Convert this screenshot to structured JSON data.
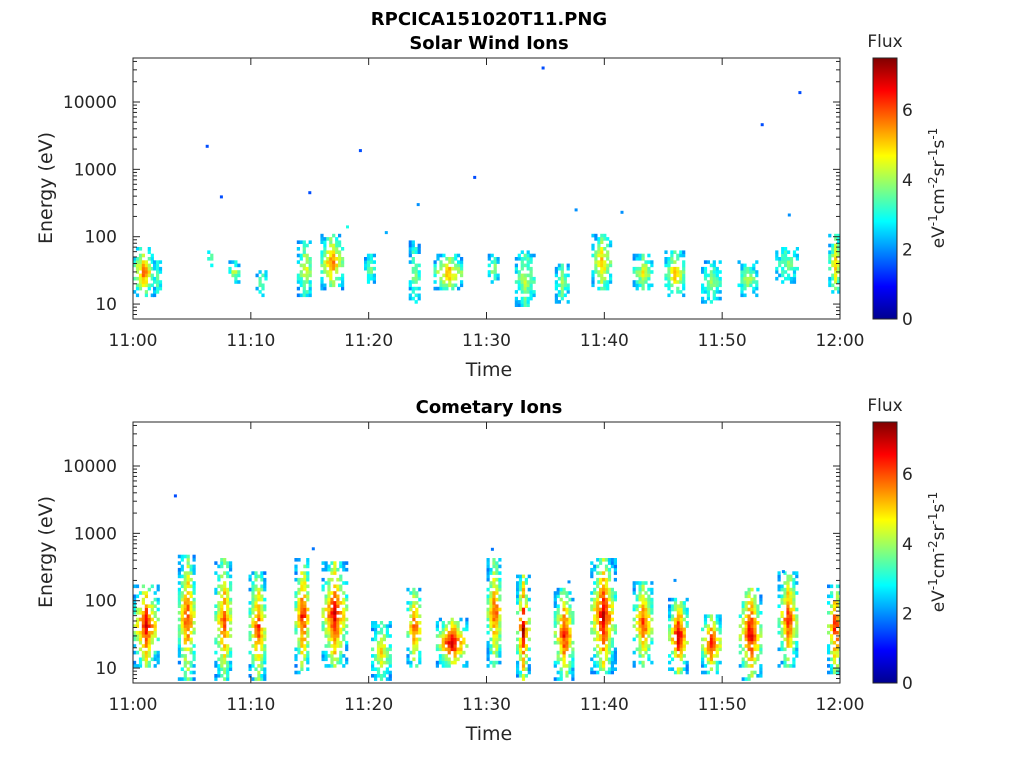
{
  "figure_title": "RPCICA151020T11.PNG",
  "colorbar": {
    "title": "Flux",
    "unit_parts": [
      "eV",
      "-1",
      "cm",
      "-2",
      "sr",
      "-1",
      "s",
      "-1"
    ],
    "min": 0,
    "max": 7.5,
    "ticks": [
      0,
      2,
      4,
      6
    ],
    "colormap": "jet"
  },
  "chart_data": [
    {
      "type": "heatmap",
      "title": "Solar Wind Ions",
      "xlabel": "Time",
      "ylabel": "Energy (eV)",
      "x_ticks": [
        "11:00",
        "11:10",
        "11:20",
        "11:30",
        "11:40",
        "11:50",
        "12:00"
      ],
      "xlim_minutes": [
        0,
        60
      ],
      "y_ticks": [
        10,
        100,
        1000,
        10000
      ],
      "ylim": [
        6,
        45000
      ],
      "y_scale": "log",
      "value_range": [
        0,
        7.5
      ],
      "clusters": [
        {
          "t": 0.8,
          "w": 1.6,
          "e_lo": 12,
          "e_hi": 70,
          "peak": 6.0
        },
        {
          "t": 2.0,
          "w": 0.6,
          "e_lo": 12,
          "e_hi": 40,
          "peak": 3.8
        },
        {
          "t": 6.5,
          "w": 0.4,
          "e_lo": 30,
          "e_hi": 70,
          "peak": 4.2
        },
        {
          "t": 8.5,
          "w": 0.8,
          "e_lo": 20,
          "e_hi": 40,
          "peak": 4.5
        },
        {
          "t": 10.8,
          "w": 0.8,
          "e_lo": 12,
          "e_hi": 30,
          "peak": 4.0
        },
        {
          "t": 14.5,
          "w": 1.2,
          "e_lo": 12,
          "e_hi": 80,
          "peak": 4.8
        },
        {
          "t": 16.8,
          "w": 1.8,
          "e_lo": 15,
          "e_hi": 100,
          "peak": 5.8
        },
        {
          "t": 20.0,
          "w": 0.8,
          "e_lo": 20,
          "e_hi": 50,
          "peak": 4.0
        },
        {
          "t": 23.8,
          "w": 0.8,
          "e_lo": 10,
          "e_hi": 80,
          "peak": 4.2
        },
        {
          "t": 26.7,
          "w": 2.4,
          "e_lo": 15,
          "e_hi": 50,
          "peak": 5.6
        },
        {
          "t": 30.5,
          "w": 0.8,
          "e_lo": 20,
          "e_hi": 50,
          "peak": 4.2
        },
        {
          "t": 33.2,
          "w": 1.6,
          "e_lo": 8,
          "e_hi": 60,
          "peak": 4.4
        },
        {
          "t": 36.3,
          "w": 1.0,
          "e_lo": 10,
          "e_hi": 40,
          "peak": 4.0
        },
        {
          "t": 39.7,
          "w": 1.6,
          "e_lo": 15,
          "e_hi": 100,
          "peak": 5.4
        },
        {
          "t": 43.2,
          "w": 1.6,
          "e_lo": 15,
          "e_hi": 50,
          "peak": 4.8
        },
        {
          "t": 45.9,
          "w": 1.6,
          "e_lo": 12,
          "e_hi": 60,
          "peak": 5.4
        },
        {
          "t": 49.0,
          "w": 1.6,
          "e_lo": 10,
          "e_hi": 40,
          "peak": 4.0
        },
        {
          "t": 52.1,
          "w": 1.6,
          "e_lo": 12,
          "e_hi": 40,
          "peak": 4.2
        },
        {
          "t": 55.4,
          "w": 1.8,
          "e_lo": 20,
          "e_hi": 70,
          "peak": 3.8
        },
        {
          "t": 59.5,
          "w": 1.0,
          "e_lo": 12,
          "e_hi": 110,
          "peak": 5.0
        }
      ],
      "isolated_points": [
        {
          "t": 6.3,
          "e": 2200,
          "v": 1.5
        },
        {
          "t": 7.5,
          "e": 390,
          "v": 1.5
        },
        {
          "t": 15.0,
          "e": 450,
          "v": 1.5
        },
        {
          "t": 19.3,
          "e": 1900,
          "v": 1.5
        },
        {
          "t": 24.2,
          "e": 300,
          "v": 2.0
        },
        {
          "t": 29.0,
          "e": 760,
          "v": 1.5
        },
        {
          "t": 34.8,
          "e": 32000,
          "v": 1.5
        },
        {
          "t": 37.6,
          "e": 250,
          "v": 2.0
        },
        {
          "t": 41.5,
          "e": 230,
          "v": 2.0
        },
        {
          "t": 53.4,
          "e": 4600,
          "v": 1.5
        },
        {
          "t": 56.6,
          "e": 13800,
          "v": 1.5
        },
        {
          "t": 55.7,
          "e": 210,
          "v": 2.0
        },
        {
          "t": 18.2,
          "e": 140,
          "v": 3.0
        },
        {
          "t": 21.5,
          "e": 115,
          "v": 2.2
        }
      ]
    },
    {
      "type": "heatmap",
      "title": "Cometary Ions",
      "xlabel": "Time",
      "ylabel": "Energy (eV)",
      "x_ticks": [
        "11:00",
        "11:10",
        "11:20",
        "11:30",
        "11:40",
        "11:50",
        "12:00"
      ],
      "xlim_minutes": [
        0,
        60
      ],
      "y_ticks": [
        10,
        100,
        1000,
        10000
      ],
      "ylim": [
        6,
        45000
      ],
      "y_scale": "log",
      "value_range": [
        0,
        7.5
      ],
      "clusters": [
        {
          "t": 1.0,
          "w": 2.0,
          "e_lo": 10,
          "e_hi": 170,
          "peak": 6.8
        },
        {
          "t": 4.5,
          "w": 1.4,
          "e_lo": 6,
          "e_hi": 450,
          "peak": 6.4
        },
        {
          "t": 7.6,
          "w": 1.4,
          "e_lo": 6,
          "e_hi": 400,
          "peak": 6.2
        },
        {
          "t": 10.5,
          "w": 1.4,
          "e_lo": 6,
          "e_hi": 250,
          "peak": 6.4
        },
        {
          "t": 14.3,
          "w": 1.2,
          "e_lo": 8,
          "e_hi": 400,
          "peak": 6.8
        },
        {
          "t": 17.0,
          "w": 2.0,
          "e_lo": 10,
          "e_hi": 350,
          "peak": 7.0
        },
        {
          "t": 21.0,
          "w": 1.6,
          "e_lo": 6,
          "e_hi": 45,
          "peak": 5.0
        },
        {
          "t": 23.8,
          "w": 1.2,
          "e_lo": 10,
          "e_hi": 150,
          "peak": 6.4
        },
        {
          "t": 27.0,
          "w": 2.6,
          "e_lo": 10,
          "e_hi": 50,
          "peak": 7.2
        },
        {
          "t": 30.6,
          "w": 1.2,
          "e_lo": 10,
          "e_hi": 400,
          "peak": 6.2
        },
        {
          "t": 33.0,
          "w": 1.0,
          "e_lo": 6,
          "e_hi": 220,
          "peak": 7.2
        },
        {
          "t": 36.5,
          "w": 1.6,
          "e_lo": 6,
          "e_hi": 150,
          "peak": 6.6
        },
        {
          "t": 39.8,
          "w": 2.0,
          "e_lo": 8,
          "e_hi": 400,
          "peak": 7.0
        },
        {
          "t": 43.2,
          "w": 1.6,
          "e_lo": 10,
          "e_hi": 180,
          "peak": 6.4
        },
        {
          "t": 46.2,
          "w": 1.6,
          "e_lo": 8,
          "e_hi": 100,
          "peak": 7.2
        },
        {
          "t": 49.0,
          "w": 1.6,
          "e_lo": 8,
          "e_hi": 60,
          "peak": 6.8
        },
        {
          "t": 52.3,
          "w": 1.8,
          "e_lo": 6,
          "e_hi": 150,
          "peak": 7.0
        },
        {
          "t": 55.5,
          "w": 1.6,
          "e_lo": 10,
          "e_hi": 250,
          "peak": 6.4
        },
        {
          "t": 59.5,
          "w": 1.2,
          "e_lo": 8,
          "e_hi": 170,
          "peak": 6.8
        }
      ],
      "isolated_points": [
        {
          "t": 3.6,
          "e": 3600,
          "v": 1.5
        },
        {
          "t": 30.5,
          "e": 580,
          "v": 1.8
        },
        {
          "t": 15.3,
          "e": 590,
          "v": 1.8
        },
        {
          "t": 37.0,
          "e": 190,
          "v": 2.0
        },
        {
          "t": 46.0,
          "e": 200,
          "v": 2.0
        },
        {
          "t": 55.2,
          "e": 270,
          "v": 2.0
        }
      ]
    }
  ]
}
